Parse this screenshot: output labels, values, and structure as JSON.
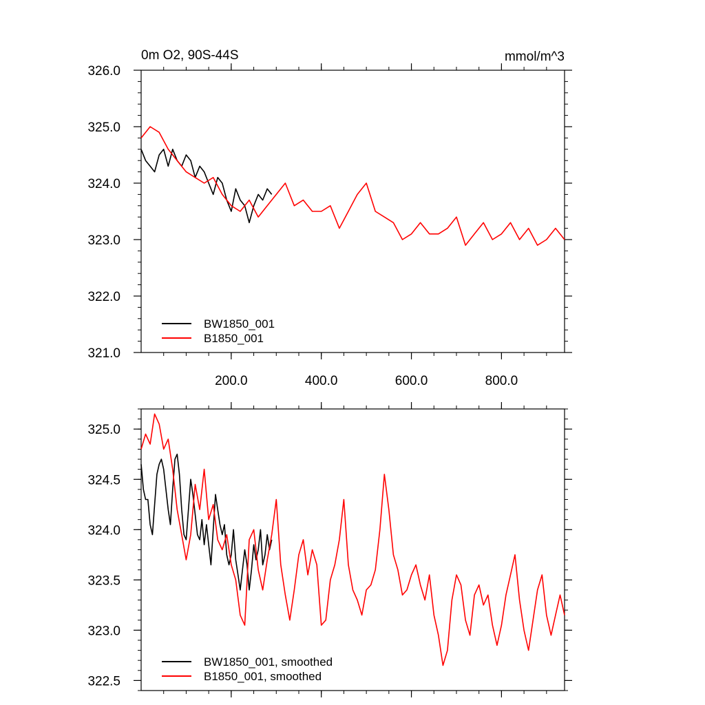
{
  "chart_data": [
    {
      "type": "line",
      "title": "0m O2, 90S-44S",
      "units": "mmol/m^3",
      "xlim": [
        0,
        940
      ],
      "ylim": [
        321.0,
        326.0
      ],
      "xticks": [
        200,
        400,
        600,
        800
      ],
      "xtick_labels": [
        "200.0",
        "400.0",
        "600.0",
        "800.0"
      ],
      "yticks": [
        321,
        322,
        323,
        324,
        325,
        326
      ],
      "ytick_labels": [
        "321.0",
        "322.0",
        "323.0",
        "324.0",
        "325.0",
        "326.0"
      ],
      "legend_position": "bottom-left",
      "series": [
        {
          "name": "BW1850_001",
          "color": "#000000",
          "x": [
            0,
            10,
            20,
            30,
            40,
            50,
            60,
            70,
            80,
            90,
            100,
            110,
            120,
            130,
            140,
            150,
            160,
            170,
            180,
            190,
            200,
            210,
            220,
            230,
            240,
            250,
            260,
            270,
            280,
            290
          ],
          "y": [
            324.6,
            324.4,
            324.3,
            324.2,
            324.5,
            324.6,
            324.3,
            324.6,
            324.4,
            324.3,
            324.5,
            324.4,
            324.1,
            324.3,
            324.2,
            324.0,
            323.8,
            324.1,
            324.0,
            323.7,
            323.5,
            323.9,
            323.7,
            323.6,
            323.3,
            323.6,
            323.8,
            323.7,
            323.9,
            323.8
          ]
        },
        {
          "name": "B1850_001",
          "color": "#ff0000",
          "x": [
            0,
            20,
            40,
            60,
            80,
            100,
            120,
            140,
            160,
            180,
            200,
            220,
            240,
            260,
            280,
            300,
            320,
            340,
            360,
            380,
            400,
            420,
            440,
            460,
            480,
            500,
            520,
            540,
            560,
            580,
            600,
            620,
            640,
            660,
            680,
            700,
            720,
            740,
            760,
            780,
            800,
            820,
            840,
            860,
            880,
            900,
            920,
            940
          ],
          "y": [
            324.8,
            325.0,
            324.9,
            324.6,
            324.4,
            324.2,
            324.1,
            324.0,
            324.1,
            323.8,
            323.6,
            323.5,
            323.7,
            323.4,
            323.6,
            323.8,
            324.0,
            323.6,
            323.7,
            323.5,
            323.5,
            323.6,
            323.2,
            323.5,
            323.8,
            324.0,
            323.5,
            323.4,
            323.3,
            323.0,
            323.1,
            323.3,
            323.1,
            323.1,
            323.2,
            323.4,
            322.9,
            323.1,
            323.3,
            323.0,
            323.1,
            323.3,
            323.0,
            323.2,
            322.9,
            323.0,
            323.2,
            323.0
          ]
        }
      ]
    },
    {
      "type": "line",
      "title": "",
      "xlim": [
        0,
        940
      ],
      "ylim": [
        322.4,
        325.2
      ],
      "xticks": [
        200,
        400,
        600,
        800
      ],
      "yticks": [
        322.5,
        323.0,
        323.5,
        324.0,
        324.5,
        325.0
      ],
      "ytick_labels": [
        "322.5",
        "323.0",
        "323.5",
        "324.0",
        "324.5",
        "325.0"
      ],
      "legend_position": "bottom-left",
      "series": [
        {
          "name": "BW1850_001, smoothed",
          "color": "#000000",
          "x": [
            0,
            5,
            10,
            15,
            20,
            25,
            30,
            35,
            40,
            45,
            50,
            55,
            60,
            65,
            70,
            75,
            80,
            85,
            90,
            95,
            100,
            105,
            110,
            115,
            120,
            125,
            130,
            135,
            140,
            145,
            150,
            155,
            160,
            165,
            170,
            175,
            180,
            185,
            190,
            195,
            200,
            205,
            210,
            215,
            220,
            225,
            230,
            235,
            240,
            245,
            250,
            255,
            260,
            265,
            270,
            275,
            280,
            285,
            290
          ],
          "y": [
            324.65,
            324.4,
            324.3,
            324.3,
            324.05,
            323.95,
            324.25,
            324.55,
            324.65,
            324.7,
            324.6,
            324.4,
            324.2,
            324.05,
            324.4,
            324.7,
            324.75,
            324.55,
            324.2,
            323.95,
            323.9,
            324.2,
            324.5,
            324.35,
            324.15,
            323.95,
            323.9,
            324.1,
            323.85,
            324.05,
            323.85,
            323.65,
            324.0,
            324.35,
            324.2,
            324.05,
            323.95,
            324.05,
            323.75,
            323.65,
            323.75,
            324.0,
            323.7,
            323.55,
            323.4,
            323.6,
            323.8,
            323.65,
            323.4,
            323.6,
            323.85,
            323.7,
            323.8,
            324.0,
            323.65,
            323.75,
            323.95,
            323.8,
            323.9
          ]
        },
        {
          "name": "B1850_001, smoothed",
          "color": "#ff0000",
          "x": [
            0,
            10,
            20,
            30,
            40,
            50,
            60,
            70,
            80,
            90,
            100,
            110,
            120,
            130,
            140,
            150,
            160,
            170,
            180,
            190,
            200,
            210,
            220,
            230,
            240,
            250,
            260,
            270,
            280,
            290,
            300,
            310,
            320,
            330,
            340,
            350,
            360,
            370,
            380,
            390,
            400,
            410,
            420,
            430,
            440,
            450,
            460,
            470,
            480,
            490,
            500,
            510,
            520,
            530,
            540,
            550,
            560,
            570,
            580,
            590,
            600,
            610,
            620,
            630,
            640,
            650,
            660,
            670,
            680,
            690,
            700,
            710,
            720,
            730,
            740,
            750,
            760,
            770,
            780,
            790,
            800,
            810,
            820,
            830,
            840,
            850,
            860,
            870,
            880,
            890,
            900,
            910,
            920,
            930,
            940
          ],
          "y": [
            324.8,
            324.95,
            324.85,
            325.15,
            325.05,
            324.8,
            324.9,
            324.6,
            324.2,
            323.95,
            323.7,
            323.95,
            324.45,
            324.2,
            324.6,
            324.1,
            324.25,
            323.9,
            323.8,
            323.95,
            323.65,
            323.5,
            323.15,
            323.05,
            323.9,
            324.0,
            323.6,
            323.4,
            323.7,
            323.95,
            324.3,
            323.65,
            323.35,
            323.1,
            323.4,
            323.75,
            323.9,
            323.55,
            323.8,
            323.65,
            323.05,
            323.1,
            323.5,
            323.65,
            323.9,
            324.3,
            323.65,
            323.4,
            323.3,
            323.15,
            323.4,
            323.45,
            323.6,
            324.0,
            324.55,
            324.2,
            323.75,
            323.6,
            323.35,
            323.4,
            323.55,
            323.65,
            323.45,
            323.3,
            323.55,
            323.15,
            322.95,
            322.65,
            322.8,
            323.3,
            323.55,
            323.45,
            323.1,
            322.95,
            323.35,
            323.45,
            323.25,
            323.35,
            323.05,
            322.85,
            323.05,
            323.35,
            323.55,
            323.75,
            323.3,
            323.0,
            322.8,
            323.1,
            323.4,
            323.55,
            323.15,
            322.95,
            323.15,
            323.35,
            323.15
          ]
        }
      ]
    }
  ]
}
